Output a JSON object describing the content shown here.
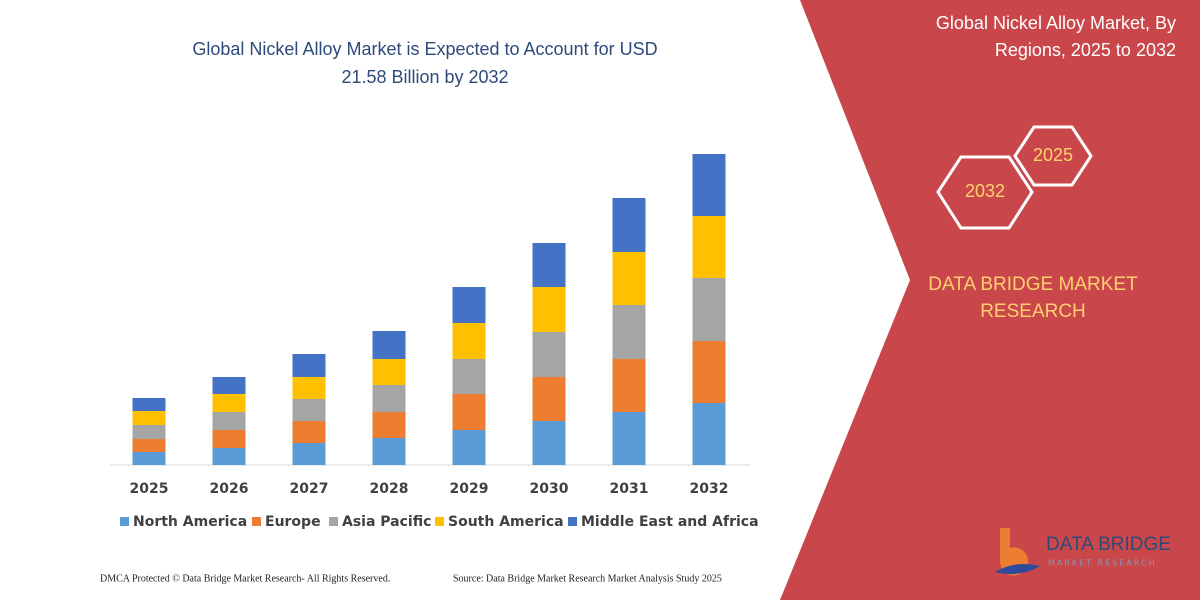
{
  "chart_data": {
    "type": "stacked-bar",
    "title_lines": [
      "Global Nickel Alloy Market is Expected to Account for USD",
      "21.58 Billion by 2032"
    ],
    "categories": [
      "2025",
      "2026",
      "2027",
      "2028",
      "2029",
      "2030",
      "2031",
      "2032"
    ],
    "series": [
      {
        "name": "North America",
        "color": "#5b9bd5",
        "values": [
          13,
          17,
          22,
          27,
          35,
          44,
          53,
          62
        ]
      },
      {
        "name": "Europe",
        "color": "#ed7d31",
        "values": [
          13,
          18,
          22,
          26,
          36,
          44,
          53,
          62
        ]
      },
      {
        "name": "Asia Pacific",
        "color": "#a5a5a5",
        "values": [
          14,
          18,
          22,
          27,
          35,
          45,
          54,
          63
        ]
      },
      {
        "name": "South America",
        "color": "#ffc000",
        "values": [
          14,
          18,
          22,
          26,
          36,
          45,
          53,
          62
        ]
      },
      {
        "name": "Middle East and Africa",
        "color": "#4472c4",
        "values": [
          13,
          17,
          23,
          28,
          36,
          44,
          54,
          62
        ]
      }
    ]
  },
  "side_panel": {
    "title_lines": [
      "Global Nickel Alloy Market, By",
      "Regions, 2025 to 2032"
    ],
    "hex_labels": [
      "2025",
      "2032"
    ],
    "brand_lines": [
      "DATA BRIDGE MARKET",
      "RESEARCH"
    ]
  },
  "logo": {
    "name": "DATA BRIDGE",
    "tagline": "MARKET RESEARCH"
  },
  "footer": {
    "left": "DMCA Protected © Data Bridge Market Research- All Rights Reserved.",
    "right": "Source: Data Bridge Market Research Market Analysis Study 2025"
  }
}
